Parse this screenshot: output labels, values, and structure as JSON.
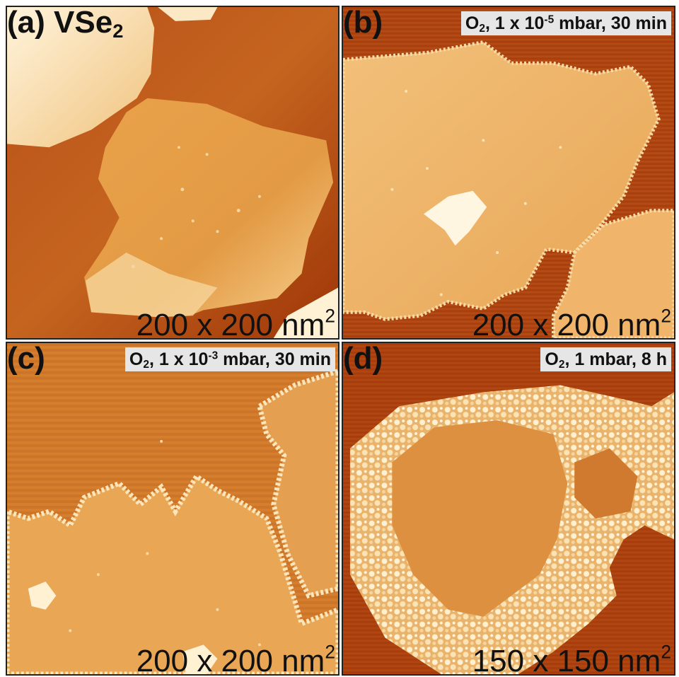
{
  "panels": [
    {
      "label": "(a)",
      "material": "VSe",
      "material_sub": "2",
      "scale": "200 x 200 nm",
      "scale_sup": "2"
    },
    {
      "label": "(b)",
      "cond_gas": "O",
      "cond_gas_sub": "2",
      "cond_pre": ", 1 x 10",
      "cond_exp": "-5",
      "cond_post": " mbar, 30 min",
      "scale": "200 x 200 nm",
      "scale_sup": "2"
    },
    {
      "label": "(c)",
      "cond_gas": "O",
      "cond_gas_sub": "2",
      "cond_pre": ", 1 x 10",
      "cond_exp": "-3",
      "cond_post": " mbar, 30 min",
      "scale": "200 x 200 nm",
      "scale_sup": "2"
    },
    {
      "label": "(d)",
      "cond_gas": "O",
      "cond_gas_sub": "2",
      "cond_text": ", 1 mbar, 8 h",
      "scale": "150 x 150 nm",
      "scale_sup": "2"
    }
  ],
  "colors": {
    "substrate_dark": "#a33a0b",
    "terrace_mid": "#d9822e",
    "terrace_light": "#f0b15a",
    "island_top": "#f8d490",
    "cluster_white": "#fff3d6"
  }
}
